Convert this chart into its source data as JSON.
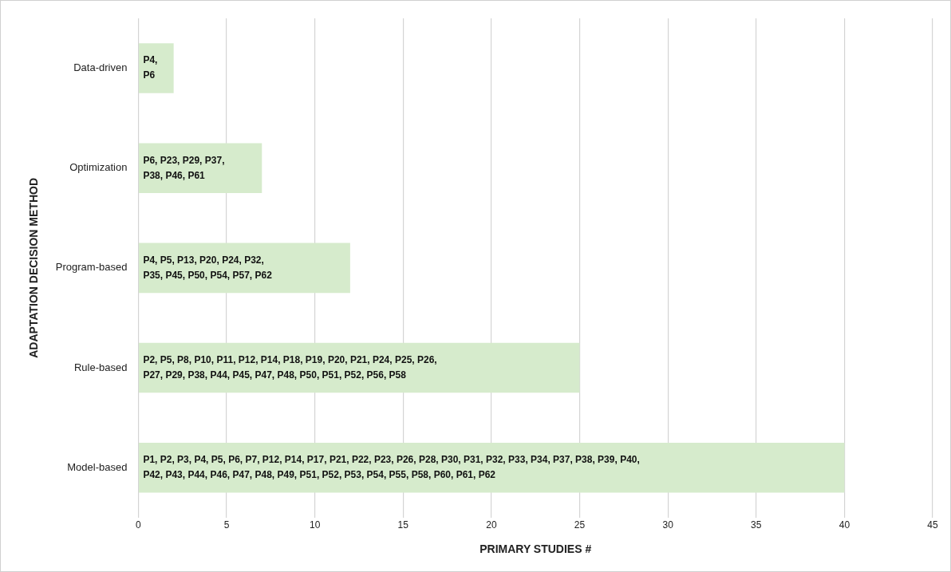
{
  "chart_data": {
    "type": "bar",
    "orientation": "horizontal",
    "xlabel": "PRIMARY STUDIES #",
    "ylabel": "ADAPTATION DECISION METHOD",
    "categories": [
      "Data-driven",
      "Optimization",
      "Program-based",
      "Rule-based",
      "Model-based"
    ],
    "values": [
      2,
      7,
      12,
      25,
      40
    ],
    "color": "#d6ebcc",
    "xlim": [
      0,
      45
    ],
    "xticks": [
      0,
      5,
      10,
      15,
      20,
      25,
      30,
      35,
      40,
      45
    ],
    "grid": "x",
    "legend": false,
    "value_labels": [
      "P4,\nP6",
      "P6, P23, P29, P37,\nP38, P46, P61",
      "P4, P5, P13, P20, P24, P32,\nP35, P45, P50, P54, P57, P62",
      "P2, P5, P8, P10, P11, P12, P14, P18, P19, P20, P21, P24, P25, P26,\nP27, P29, P38, P44, P45, P47, P48, P50, P51, P52, P56, P58",
      "P1, P2, P3, P4, P5, P6, P7, P12, P14, P17, P21, P22, P23, P26, P28, P30, P31, P32, P33, P34, P37, P38, P39, P40,\nP42, P43, P44, P46, P47, P48, P49, P51, P52, P53, P54, P55, P58, P60, P61, P62"
    ]
  }
}
